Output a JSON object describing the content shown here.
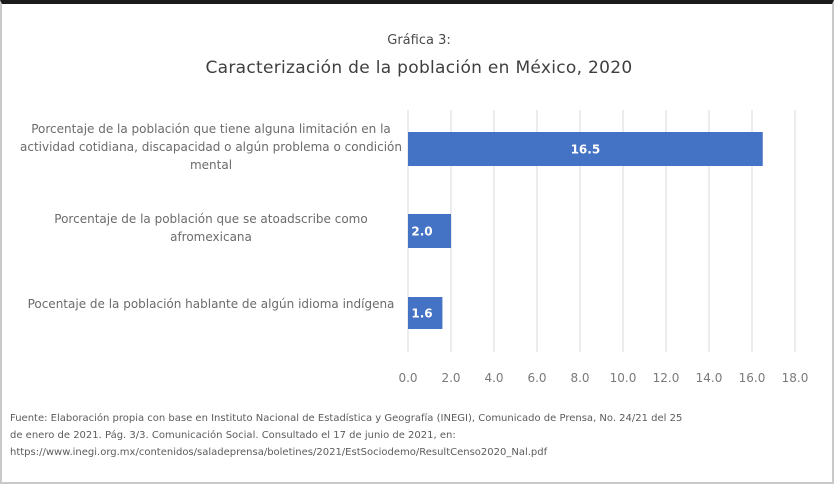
{
  "chart_data": {
    "type": "bar",
    "orientation": "horizontal",
    "subtitle": "Gráfica 3:",
    "title": "Caracterización de la población en México, 2020",
    "categories": [
      "Porcentaje de la población que tiene alguna limitación en la actividad cotidiana, discapacidad o algún problema o condición mental",
      "Porcentaje de la población que se atoadscribe como afromexicana",
      "Pocentaje de la población hablante de algún idioma indígena"
    ],
    "values": [
      16.5,
      2.0,
      1.6
    ],
    "data_labels": [
      "16.5",
      "2.0",
      "1.6"
    ],
    "xlim": [
      0,
      18
    ],
    "ticks": [
      "0.0",
      "2.0",
      "4.0",
      "6.0",
      "8.0",
      "10.0",
      "12.0",
      "14.0",
      "16.0",
      "18.0"
    ],
    "grid": "vertical",
    "legend": "none",
    "bar_color": "#4472c4"
  },
  "source": {
    "line1": "Fuente: Elaboración propia con base en Instituto Nacional de Estadística y Geografía (INEGI), Comunicado de Prensa, No. 24/21 del 25",
    "line2": "de enero de 2021. Pág. 3/3. Comunicación Social. Consultado el 17 de junio de 2021, en:",
    "line3": "https://www.inegi.org.mx/contenidos/saladeprensa/boletines/2021/EstSociodemo/ResultCenso2020_Nal.pdf"
  }
}
